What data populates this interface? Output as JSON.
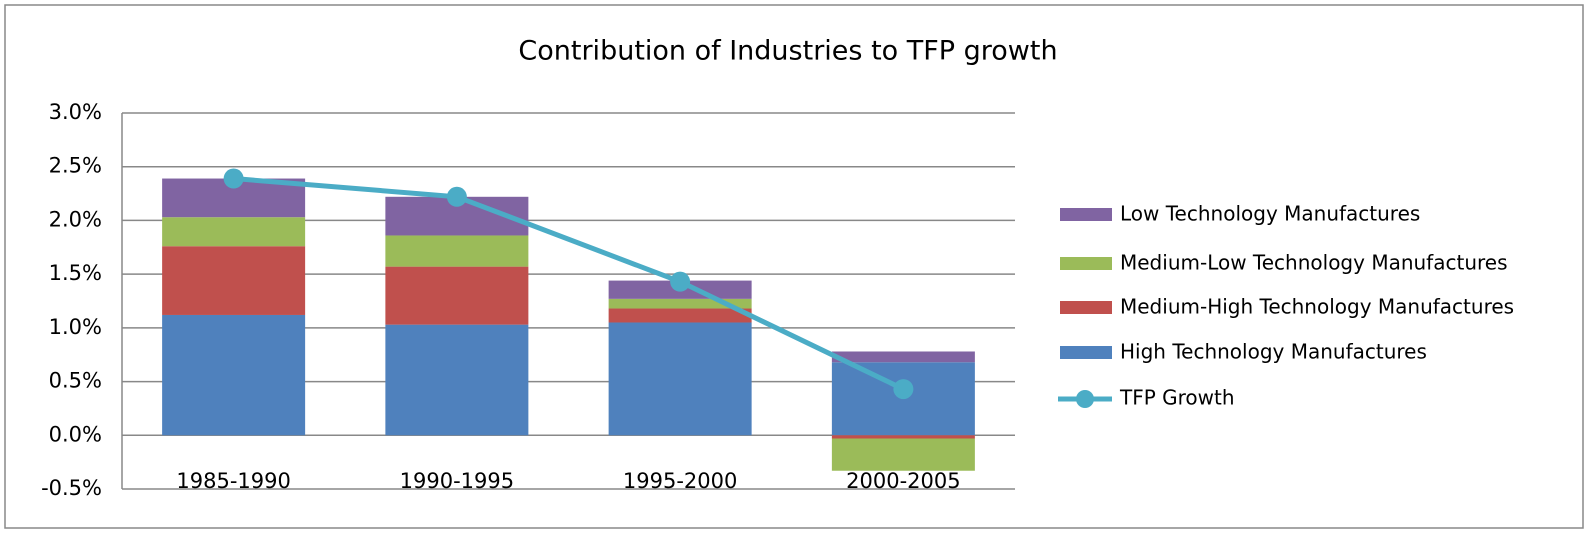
{
  "chart_data": {
    "type": "stacked_bar_line",
    "title": "Contribution of Industries to TFP growth",
    "categories": [
      "1985-1990",
      "1990-1995",
      "1995-2000",
      "2000-2005"
    ],
    "series": [
      {
        "name": "High Technology Manufactures",
        "color": "#4f81bd",
        "values": [
          1.12,
          1.03,
          1.05,
          0.68
        ]
      },
      {
        "name": "Medium-High Technology Manufactures",
        "color": "#c0504d",
        "values": [
          0.64,
          0.54,
          0.13,
          -0.03
        ]
      },
      {
        "name": "Medium-Low Technology Manufactures",
        "color": "#9bbb59",
        "values": [
          0.27,
          0.29,
          0.09,
          -0.3
        ]
      },
      {
        "name": "Low Technology Manufactures",
        "color": "#8064a2",
        "values": [
          0.36,
          0.36,
          0.17,
          0.1
        ]
      },
      {
        "name": "TFP Growth",
        "color": "#4bacc6",
        "type": "line",
        "values": [
          2.39,
          2.22,
          1.43,
          0.43
        ]
      }
    ],
    "ylim": [
      -0.5,
      3.0
    ],
    "yticks": [
      {
        "value": -0.5,
        "label": "-0.5%"
      },
      {
        "value": 0,
        "label": "0.0%"
      },
      {
        "value": 0.5,
        "label": "0.5%"
      },
      {
        "value": 1.0,
        "label": "1.0%"
      },
      {
        "value": 1.5,
        "label": "1.5%"
      },
      {
        "value": 2.0,
        "label": "2.0%"
      },
      {
        "value": 2.5,
        "label": "2.5%"
      },
      {
        "value": 3.0,
        "label": "3.0%"
      }
    ],
    "grid": true,
    "legend": "right"
  }
}
